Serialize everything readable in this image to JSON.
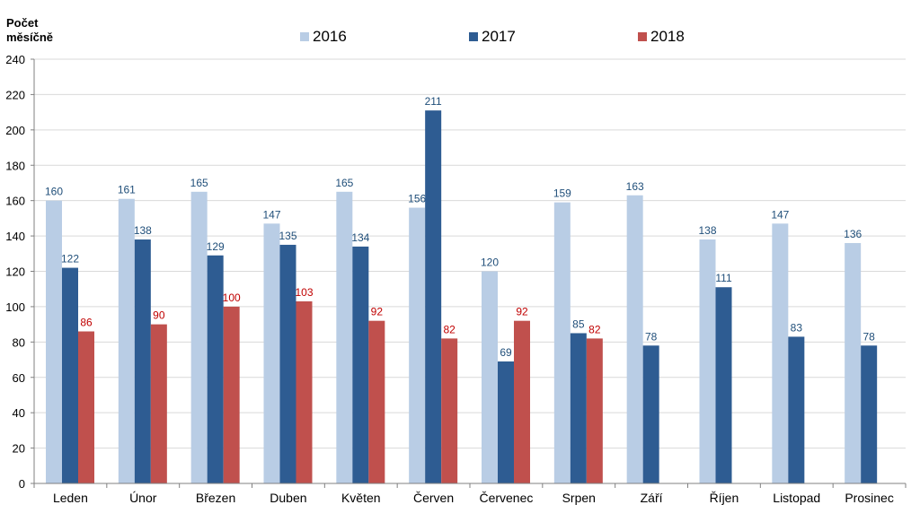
{
  "chart_data": {
    "type": "bar",
    "ylabel": "Počet\nměsíčně",
    "ylim": [
      0,
      240
    ],
    "ytick_step": 20,
    "grid": true,
    "legend_position": "top",
    "categories": [
      "Leden",
      "Únor",
      "Březen",
      "Duben",
      "Květen",
      "Červen",
      "Červenec",
      "Srpen",
      "Září",
      "Říjen",
      "Listopad",
      "Prosinec"
    ],
    "series": [
      {
        "name": "2016",
        "color": "#b9cde5",
        "label_color": "#1f4e79",
        "values": [
          160,
          161,
          165,
          147,
          165,
          156,
          120,
          159,
          163,
          138,
          147,
          136
        ]
      },
      {
        "name": "2017",
        "color": "#2e5c92",
        "label_color": "#1f4e79",
        "values": [
          122,
          138,
          129,
          135,
          134,
          211,
          69,
          85,
          78,
          111,
          83,
          78
        ]
      },
      {
        "name": "2018",
        "color": "#c0504d",
        "label_color": "#c00000",
        "values": [
          86,
          90,
          100,
          103,
          92,
          82,
          92,
          82,
          null,
          null,
          null,
          null
        ]
      }
    ]
  }
}
